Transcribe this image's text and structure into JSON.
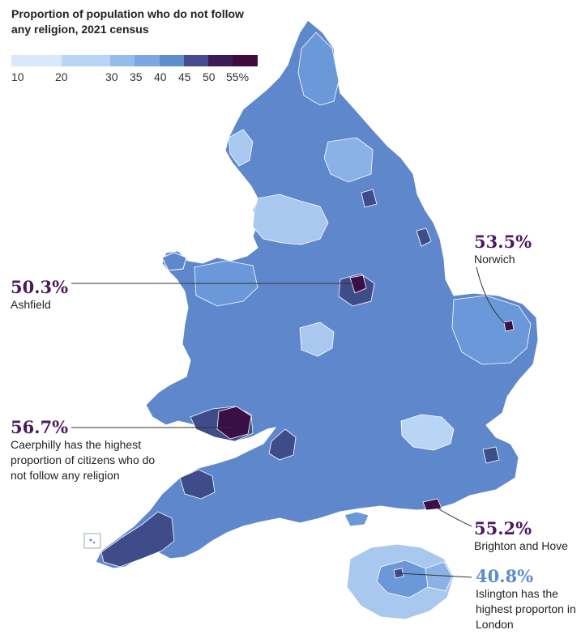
{
  "title": "Proportion of population who do not follow any religion, 2021 census",
  "legend": {
    "ticks": [
      "10",
      "20",
      "30",
      "35",
      "40",
      "45",
      "50",
      "55%"
    ],
    "colors": [
      "#d9e8fb",
      "#b9d5f6",
      "#95bdec",
      "#7aa6e1",
      "#5f8ccf",
      "#454c8f",
      "#3c1c56",
      "#3f0a3f"
    ]
  },
  "colors": {
    "land_low": "#a8c8f0",
    "land_mid": "#6a98d8",
    "land_base": "#5f88cc",
    "land_high": "#3f4c8a",
    "peak": "#3a0f45",
    "callout_purple": "#4a1a5c",
    "callout_blue": "#5a8ed0"
  },
  "callouts": {
    "norwich": {
      "value": "53.5%",
      "label": "Norwich"
    },
    "ashfield": {
      "value": "50.3%",
      "label": "Ashfield"
    },
    "caerphilly": {
      "value": "56.7%",
      "label": "Caerphilly has the highest proportion of citizens who do not follow any religion"
    },
    "brighton": {
      "value": "55.2%",
      "label": "Brighton and Hove"
    },
    "islington": {
      "value": "40.8%",
      "label": "Islington has the highest proporton in London"
    }
  }
}
